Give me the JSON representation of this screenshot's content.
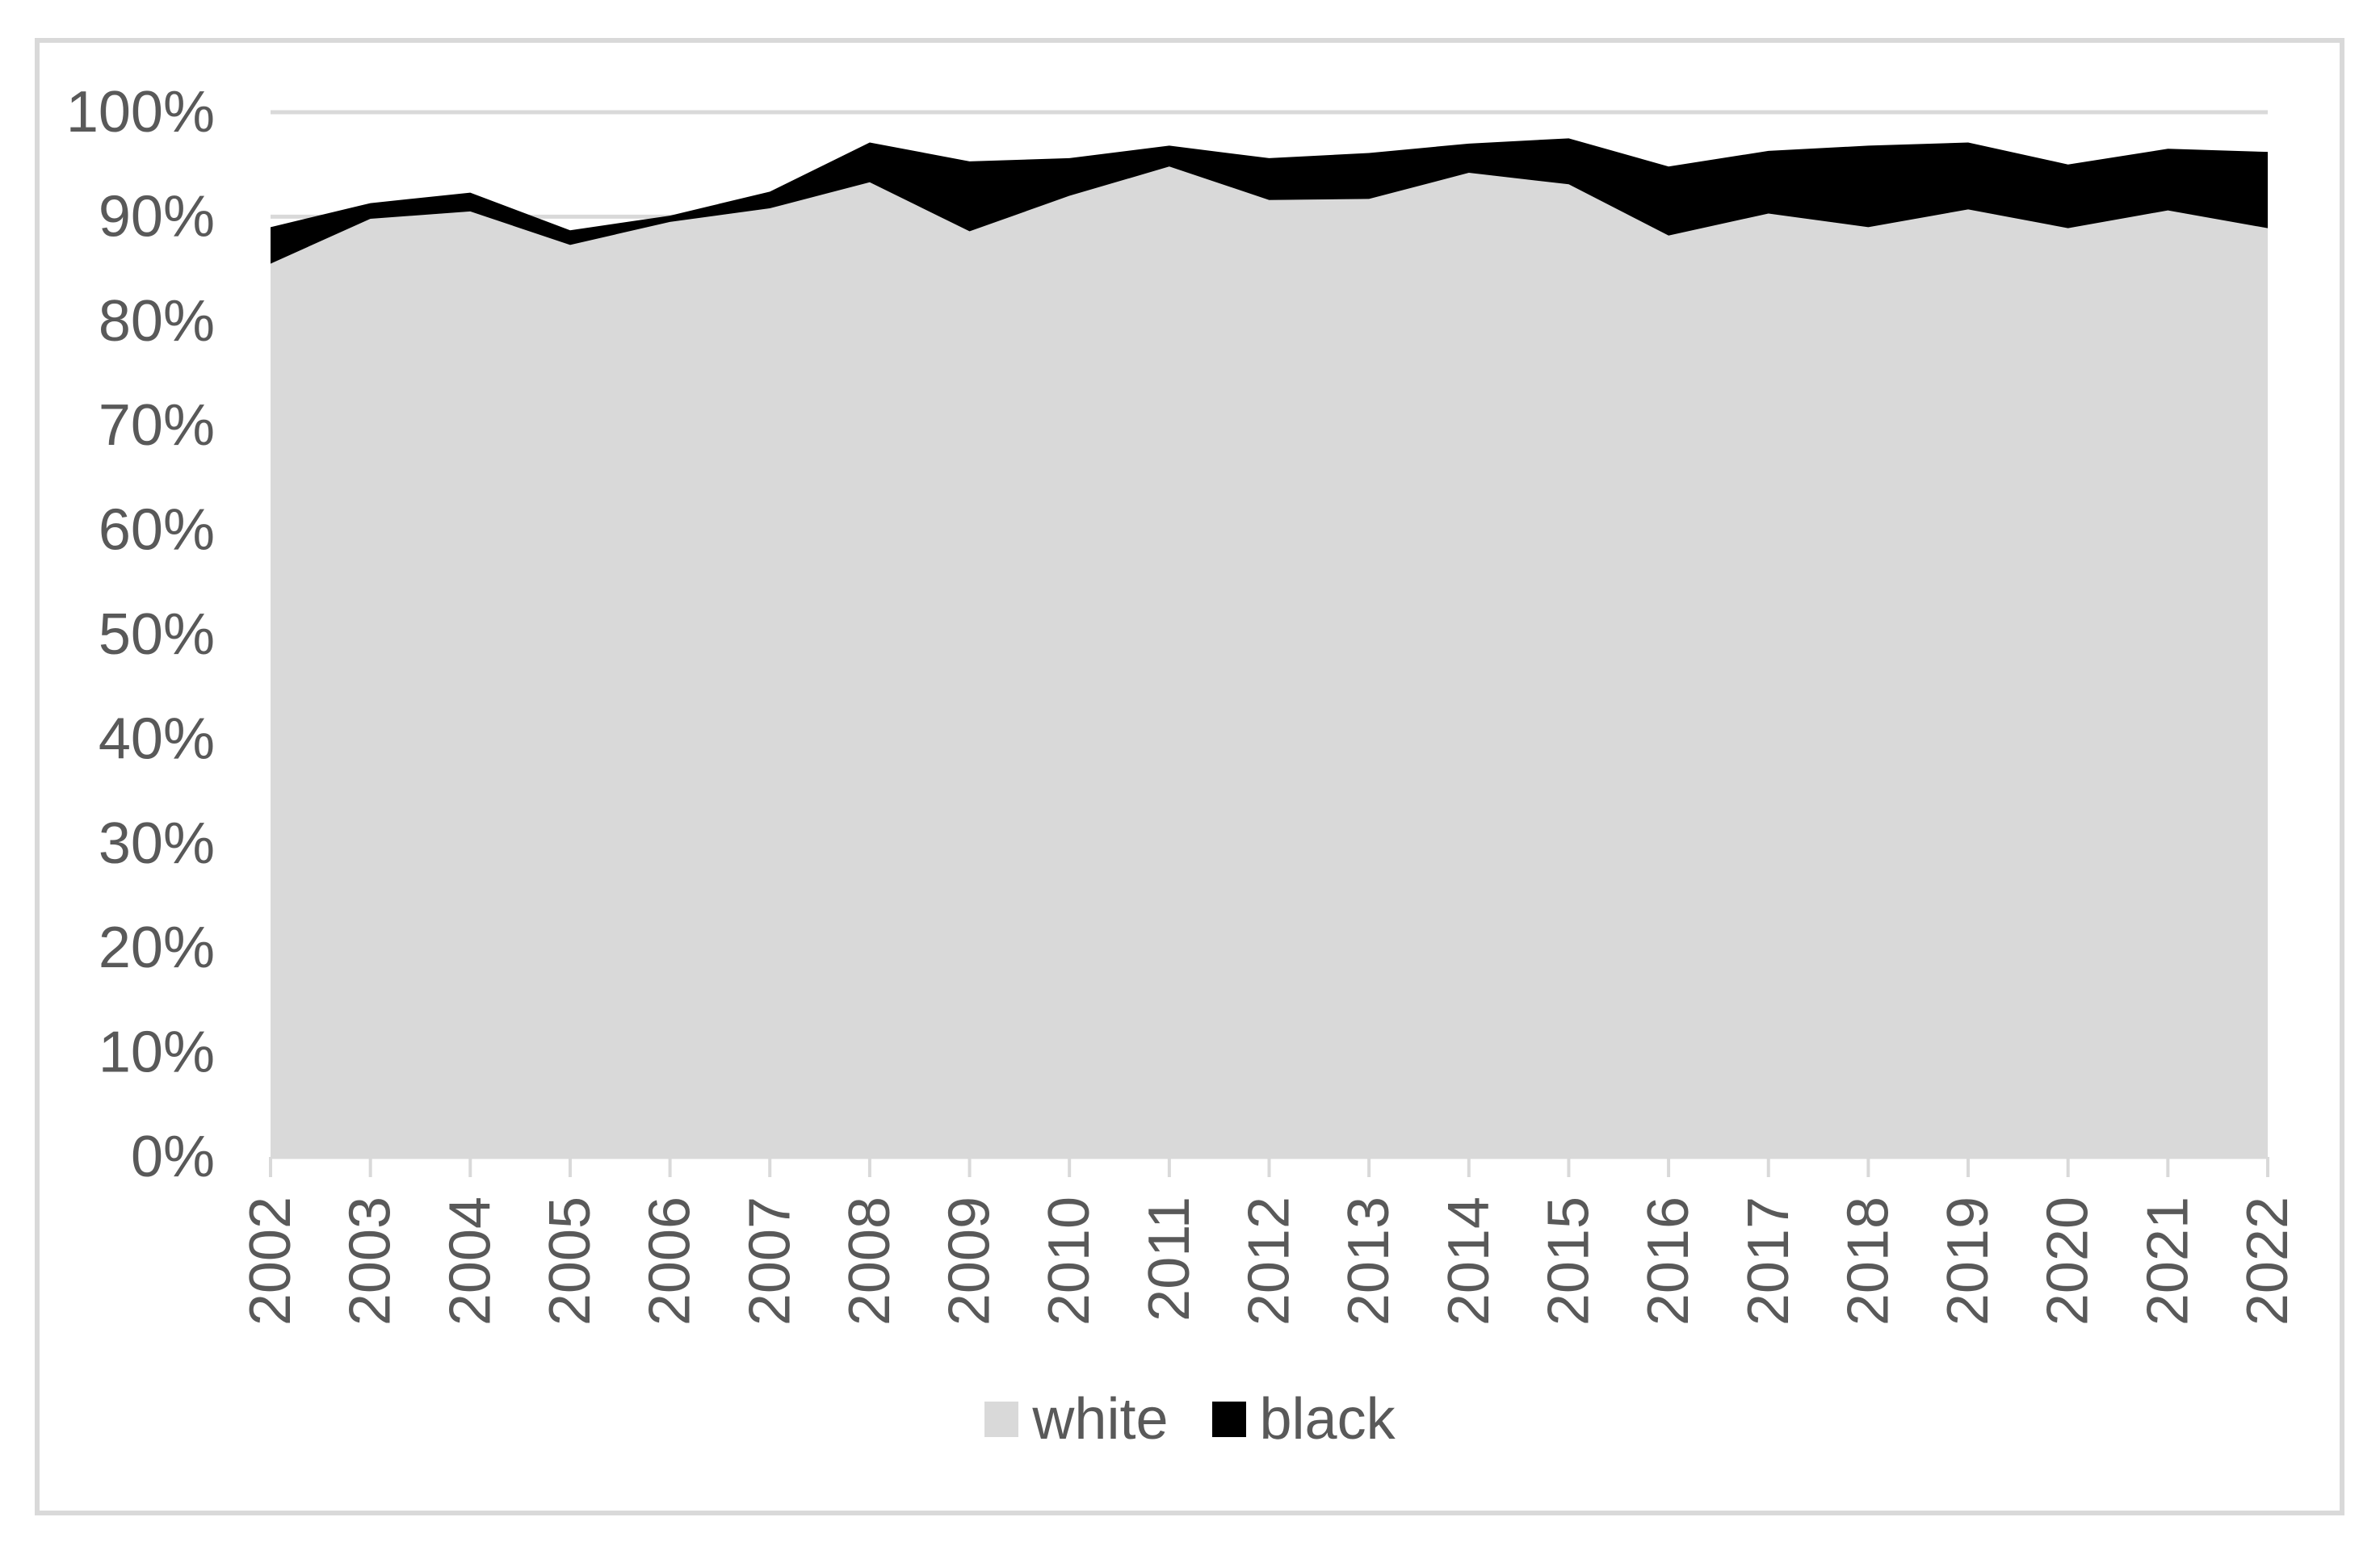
{
  "chart_data": {
    "type": "area",
    "stacked": true,
    "title": "",
    "xlabel": "",
    "ylabel": "",
    "categories": [
      "2002",
      "2003",
      "2004",
      "2005",
      "2006",
      "2007",
      "2008",
      "2009",
      "2010",
      "2011",
      "2012",
      "2013",
      "2014",
      "2015",
      "2016",
      "2017",
      "2018",
      "2019",
      "2020",
      "2021",
      "2022"
    ],
    "series": [
      {
        "name": "white",
        "color": "#d9d9d9",
        "values": [
          85.5,
          89.8,
          90.5,
          87.3,
          89.5,
          90.8,
          93.3,
          88.6,
          92.0,
          94.8,
          91.6,
          91.7,
          94.2,
          93.1,
          88.2,
          90.3,
          89.0,
          90.7,
          88.9,
          90.6,
          88.9
        ]
      },
      {
        "name": "black",
        "color": "#000000",
        "values": [
          3.5,
          1.5,
          1.8,
          1.4,
          0.6,
          1.6,
          3.8,
          6.7,
          3.6,
          2.0,
          4.0,
          4.4,
          2.8,
          4.4,
          6.6,
          6.0,
          7.8,
          6.4,
          6.1,
          5.9,
          7.3
        ]
      }
    ],
    "ylim": [
      0,
      100
    ],
    "y_tick_step": 10,
    "y_tick_labels": [
      "0%",
      "10%",
      "20%",
      "30%",
      "40%",
      "50%",
      "60%",
      "70%",
      "80%",
      "90%",
      "100%"
    ],
    "x_tick_rotation_deg": -90,
    "grid": "horizontal",
    "legend_position": "bottom"
  },
  "style": {
    "axis_text_color": "#595959",
    "gridline_color": "#d9d9d9",
    "tick_color": "#d9d9d9",
    "border_color": "#d9d9d9",
    "background_color": "#ffffff"
  },
  "legend": {
    "items": [
      {
        "label": "white",
        "color": "#d9d9d9"
      },
      {
        "label": "black",
        "color": "#000000"
      }
    ]
  }
}
